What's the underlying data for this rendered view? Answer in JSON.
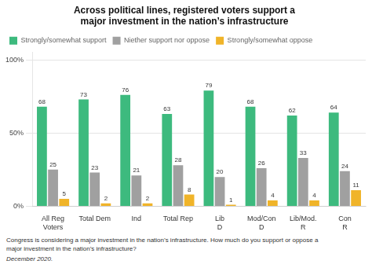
{
  "chart_data": {
    "type": "bar",
    "title": "Across political lines, registered voters support a\nmajor investment in the nation’s infrastructure",
    "categories": [
      "All Reg\nVoters",
      "Total Dem",
      "Ind",
      "Total Rep",
      "Lib\nD",
      "Mod/Con\nD",
      "Lib/Mod.\nR",
      "Con\nR"
    ],
    "series": [
      {
        "name": "Strongly/somewhat support",
        "color": "#3dba7e",
        "values": [
          68,
          73,
          76,
          63,
          79,
          68,
          62,
          64
        ]
      },
      {
        "name": "Niether support nor oppose",
        "color": "#a0a0a0",
        "values": [
          25,
          23,
          21,
          28,
          20,
          26,
          33,
          24
        ]
      },
      {
        "name": "Strongly/somewhat oppose",
        "color": "#f0b429",
        "values": [
          5,
          2,
          2,
          8,
          1,
          4,
          4,
          11
        ]
      }
    ],
    "ylim": [
      0,
      105
    ],
    "yticks": [
      {
        "value": 0,
        "label": "0%"
      },
      {
        "value": 50,
        "label": "50%"
      },
      {
        "value": 100,
        "label": "100%"
      }
    ],
    "grid": true,
    "legend": "top-left",
    "data_labels": true,
    "annotations": [
      "Congress is considering a major investment in the nation’s infrastructure. How much do you support or oppose a",
      "major investment in the nation’s infrastructure?",
      "December 2020."
    ]
  }
}
